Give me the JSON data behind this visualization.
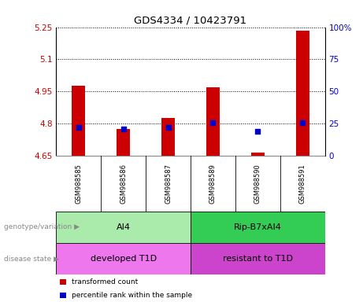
{
  "title": "GDS4334 / 10423791",
  "samples": [
    "GSM988585",
    "GSM988586",
    "GSM988587",
    "GSM988589",
    "GSM988590",
    "GSM988591"
  ],
  "bar_bottoms": [
    4.65,
    4.65,
    4.65,
    4.65,
    4.65,
    4.65
  ],
  "bar_tops": [
    4.975,
    4.775,
    4.825,
    4.968,
    4.663,
    5.235
  ],
  "blue_dots": [
    4.782,
    4.775,
    4.782,
    4.803,
    4.762,
    4.803
  ],
  "ylim": [
    4.65,
    5.25
  ],
  "yticks_left": [
    4.65,
    4.8,
    4.95,
    5.1,
    5.25
  ],
  "ylabel_left_color": "#cc0000",
  "ylabel_right_color": "#0000cc",
  "bar_color": "#cc0000",
  "dot_color": "#0000cc",
  "bg_plot": "#ffffff",
  "bg_label": "#c8c8c8",
  "genotype_groups": [
    {
      "label": "AI4",
      "start": 0,
      "end": 3,
      "color": "#aaeaaa"
    },
    {
      "label": "Rip-B7xAI4",
      "start": 3,
      "end": 6,
      "color": "#33cc55"
    }
  ],
  "disease_groups": [
    {
      "label": "developed T1D",
      "start": 0,
      "end": 3,
      "color": "#ee77ee"
    },
    {
      "label": "resistant to T1D",
      "start": 3,
      "end": 6,
      "color": "#cc44cc"
    }
  ],
  "legend_items": [
    {
      "color": "#cc0000",
      "label": "transformed count"
    },
    {
      "color": "#0000cc",
      "label": "percentile rank within the sample"
    }
  ],
  "right_yticks": [
    0,
    25,
    50,
    75,
    100
  ],
  "right_yticklabels": [
    "0",
    "25",
    "50",
    "75",
    "100%"
  ]
}
